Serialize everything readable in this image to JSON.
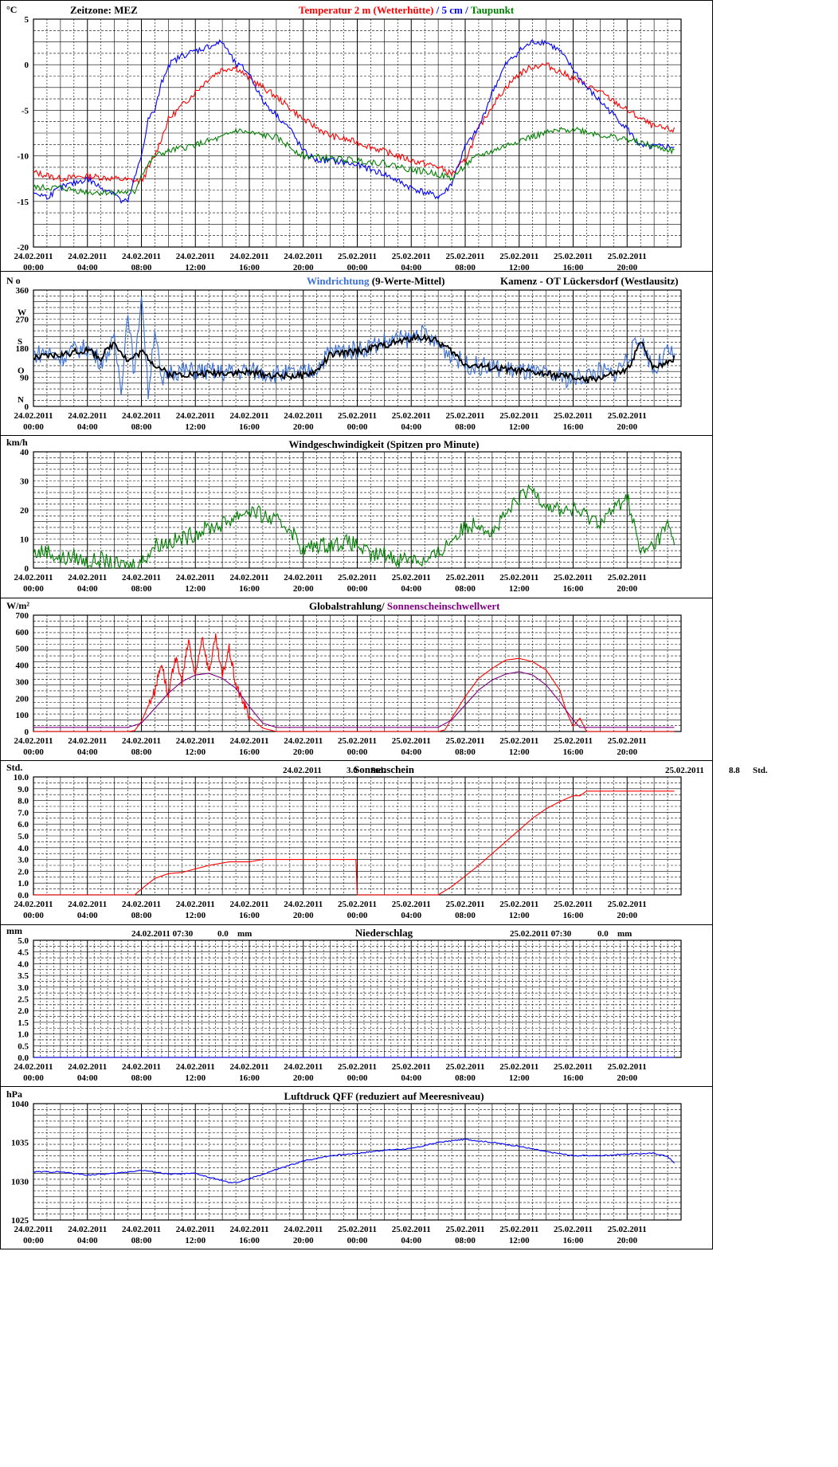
{
  "time_labels": {
    "dates": [
      "24.02.2011",
      "24.02.2011",
      "24.02.2011",
      "24.02.2011",
      "24.02.2011",
      "24.02.2011",
      "25.02.2011",
      "25.02.2011",
      "25.02.2011",
      "25.02.2011",
      "25.02.2011",
      "25.02.2011"
    ],
    "times": [
      "00:00",
      "04:00",
      "08:00",
      "12:00",
      "16:00",
      "20:00",
      "00:00",
      "04:00",
      "08:00",
      "12:00",
      "16:00",
      "20:00"
    ]
  },
  "chart_data": [
    {
      "id": "temperature",
      "type": "line",
      "unit": "°C",
      "ylim": [
        -20,
        5
      ],
      "yticks": [
        5,
        0,
        -5,
        -10,
        -15,
        -20
      ],
      "header_left": "Zeitzone: MEZ",
      "title_parts": [
        {
          "text": "Temperatur 2 m (Wetterhütte)",
          "color": "#ff0000"
        },
        {
          "text": "  /  ",
          "color": "#0000ff"
        },
        {
          "text": "5 cm",
          "color": "#0000ff"
        },
        {
          "text": " / ",
          "color": "#0000ff"
        },
        {
          "text": "Taupunkt",
          "color": "#008000"
        }
      ],
      "series": [
        {
          "name": "Temperatur 2 m (Wetterhütte)",
          "color": "#ff0000",
          "x": [
            0,
            2,
            4,
            6,
            8,
            9,
            10,
            11,
            12,
            13,
            14,
            15,
            16,
            18,
            20,
            22,
            24,
            26,
            28,
            30,
            31,
            32,
            33,
            34,
            35,
            36,
            37,
            38,
            40,
            42,
            44,
            46,
            47.5
          ],
          "values": [
            -11.8,
            -12.5,
            -12.2,
            -12.5,
            -12.8,
            -10,
            -6,
            -4.5,
            -3,
            -1.5,
            -0.5,
            -0.3,
            -1.5,
            -3.5,
            -6,
            -7.8,
            -8.5,
            -9.5,
            -10.5,
            -11.2,
            -12,
            -10.5,
            -7,
            -4.5,
            -2.5,
            -1,
            -0.2,
            0,
            -1.5,
            -3,
            -5,
            -6.8,
            -7.2
          ]
        },
        {
          "name": "5 cm",
          "color": "#0000ff",
          "x": [
            0,
            1,
            2,
            3,
            4,
            5,
            6,
            6.5,
            7,
            8,
            8.5,
            9,
            9.5,
            10,
            10.5,
            11,
            12,
            13,
            14,
            15,
            15.5,
            16,
            17,
            18,
            19,
            20,
            21,
            22,
            24,
            26,
            28,
            30,
            30.5,
            31,
            32,
            33,
            34,
            35,
            36,
            37,
            38,
            39,
            40,
            41,
            42,
            43,
            44,
            44.5,
            45,
            46,
            47,
            47.5
          ],
          "values": [
            -14,
            -14.5,
            -13.5,
            -13,
            -12.5,
            -13.5,
            -14,
            -15,
            -15,
            -10,
            -6,
            -5,
            -2,
            0,
            0.5,
            1,
            1.5,
            2,
            2.5,
            0,
            -0.3,
            -1,
            -4,
            -5.5,
            -7,
            -9.5,
            -10.5,
            -10.5,
            -11,
            -12,
            -13.5,
            -14.5,
            -14,
            -13,
            -9,
            -7,
            -3,
            0,
            1.5,
            2.5,
            2.5,
            1.5,
            -0.5,
            -2.5,
            -4,
            -5.5,
            -7,
            -8,
            -9,
            -9,
            -9,
            -9
          ]
        },
        {
          "name": "Taupunkt",
          "color": "#008000",
          "x": [
            0,
            2,
            4,
            6,
            7.5,
            8,
            9,
            10,
            12,
            14,
            15,
            16,
            18,
            19,
            20,
            22,
            24,
            26,
            28,
            30,
            31,
            32,
            33,
            34,
            36,
            38,
            40,
            42,
            44,
            46,
            47.5
          ],
          "values": [
            -13.5,
            -13.5,
            -14,
            -14,
            -14,
            -12,
            -10,
            -9.5,
            -8.8,
            -8,
            -7.2,
            -7.5,
            -8,
            -9,
            -10,
            -10.3,
            -10.5,
            -10.8,
            -11.5,
            -12,
            -12.5,
            -11,
            -10,
            -9.5,
            -8.3,
            -7.5,
            -7,
            -7.7,
            -8.2,
            -9,
            -9.5
          ]
        }
      ]
    },
    {
      "id": "wind_direction",
      "type": "line",
      "unit": "N o",
      "ylim": [
        0,
        360
      ],
      "yticks": [
        360,
        270,
        180,
        90,
        0
      ],
      "dir_labels": [
        "W",
        "S",
        "O",
        "N"
      ],
      "title_parts": [
        {
          "text": "Windrichtung",
          "color": "#3a6fd8"
        },
        {
          "text": " (9-Werte-Mittel)",
          "color": "#000000"
        }
      ],
      "station": "Kamenz - OT Lückersdorf (Westlausitz)",
      "series": [
        {
          "name": "Windrichtung",
          "color": "#3a6fd8",
          "x": [
            0,
            1,
            2,
            3,
            4,
            5,
            6,
            6.5,
            7,
            7.5,
            8,
            8.5,
            9,
            9.5,
            10,
            12,
            14,
            16,
            18,
            20,
            21,
            22,
            24,
            26,
            28,
            28.5,
            29,
            30,
            31,
            32,
            34,
            36,
            38,
            40,
            42,
            43,
            44,
            45,
            46,
            47,
            47.5
          ],
          "values": [
            160,
            170,
            150,
            175,
            180,
            140,
            200,
            60,
            300,
            90,
            360,
            40,
            250,
            60,
            110,
            110,
            105,
            110,
            100,
            100,
            120,
            170,
            175,
            200,
            210,
            230,
            220,
            190,
            160,
            130,
            120,
            110,
            95,
            85,
            110,
            100,
            150,
            210,
            110,
            170,
            150
          ]
        },
        {
          "name": "",
          "color": "#000000",
          "x": [
            0,
            2,
            4,
            5,
            6,
            7,
            8,
            9,
            10,
            12,
            14,
            16,
            18,
            20,
            21,
            22,
            24,
            26,
            28,
            29,
            30,
            31,
            32,
            34,
            36,
            38,
            40,
            41,
            42,
            43,
            44,
            45,
            46,
            47,
            47.5
          ],
          "values": [
            150,
            160,
            175,
            150,
            200,
            140,
            170,
            130,
            100,
            100,
            105,
            105,
            95,
            95,
            110,
            160,
            170,
            190,
            210,
            215,
            200,
            170,
            130,
            120,
            110,
            100,
            90,
            80,
            90,
            100,
            110,
            200,
            120,
            140,
            150
          ]
        }
      ]
    },
    {
      "id": "wind_speed",
      "type": "line",
      "unit": "km/h",
      "ylim": [
        0,
        40
      ],
      "yticks": [
        40,
        30,
        20,
        10,
        0
      ],
      "title": "Windgeschwindigkeit (Spitzen pro Minute)",
      "series": [
        {
          "name": "Windgeschwindigkeit",
          "color": "#008000",
          "x": [
            0,
            1,
            2,
            3,
            4,
            5,
            6,
            7,
            8,
            9,
            10,
            11,
            12,
            13,
            14,
            15,
            16,
            17,
            18,
            19,
            20,
            21,
            22,
            23,
            24,
            25,
            26,
            27,
            28,
            29,
            30,
            31,
            32,
            33,
            34,
            35,
            36,
            37,
            38,
            39,
            40,
            41,
            42,
            43,
            44,
            45,
            46,
            47,
            47.5
          ],
          "values": [
            5,
            6,
            3,
            4,
            2,
            3,
            1,
            1,
            2,
            8,
            9,
            10,
            12,
            14,
            15,
            18,
            20,
            18,
            16,
            14,
            6,
            8,
            8,
            9,
            8,
            4,
            5,
            3,
            4,
            2,
            5,
            10,
            14,
            16,
            12,
            18,
            24,
            27,
            22,
            20,
            20,
            18,
            16,
            20,
            25,
            5,
            8,
            15,
            8
          ]
        }
      ]
    },
    {
      "id": "global_radiation",
      "type": "line",
      "unit": "W/m²",
      "ylim": [
        0,
        700
      ],
      "yticks": [
        700,
        600,
        500,
        400,
        300,
        200,
        100,
        0
      ],
      "title_parts": [
        {
          "text": "Globalstrahlung/ ",
          "color": "#000000"
        },
        {
          "text": "Sonnenscheinschwellwert",
          "color": "#800080"
        }
      ],
      "series": [
        {
          "name": "Globalstrahlung",
          "color": "#ff0000",
          "x": [
            0,
            7,
            7.5,
            8,
            9,
            9.5,
            10,
            10.5,
            11,
            11.5,
            12,
            12.5,
            13,
            13.5,
            14,
            14.5,
            15,
            16,
            17,
            18,
            30,
            30.5,
            31,
            32,
            33,
            34,
            35,
            36,
            37,
            38,
            39,
            39.5,
            40,
            40.5,
            41,
            41.5,
            42,
            47.5
          ],
          "values": [
            0,
            0,
            5,
            60,
            250,
            420,
            200,
            450,
            300,
            550,
            320,
            580,
            360,
            560,
            330,
            500,
            280,
            90,
            20,
            0,
            0,
            10,
            80,
            210,
            320,
            380,
            430,
            440,
            420,
            370,
            250,
            120,
            30,
            80,
            0,
            0,
            0,
            0
          ]
        },
        {
          "name": "Sonnenscheinschwellwert",
          "color": "#800080",
          "x": [
            0,
            7,
            8,
            9,
            10,
            11,
            12,
            13,
            14,
            15,
            16,
            17,
            18,
            30,
            31,
            32,
            33,
            34,
            35,
            36,
            37,
            38,
            39,
            40,
            40.5,
            41,
            47.5
          ],
          "values": [
            25,
            25,
            50,
            140,
            230,
            300,
            340,
            350,
            320,
            260,
            150,
            50,
            25,
            25,
            70,
            160,
            250,
            310,
            345,
            360,
            340,
            280,
            180,
            70,
            25,
            25,
            25
          ]
        }
      ]
    },
    {
      "id": "sunshine",
      "type": "line",
      "unit": "Std.",
      "ylim": [
        0,
        10
      ],
      "yticks": [
        10.0,
        9.0,
        8.0,
        7.0,
        6.0,
        5.0,
        4.0,
        3.0,
        2.0,
        1.0,
        0.0
      ],
      "title": "Sonnenschein",
      "summaries": [
        {
          "date": "24.02.2011",
          "value": "3.0",
          "unit": "Std."
        },
        {
          "date": "25.02.2011",
          "value": "8.8",
          "unit": "Std."
        }
      ],
      "series": [
        {
          "name": "Sonnenschein",
          "color": "#ff0000",
          "x": [
            0,
            7.5,
            8,
            9,
            10,
            11,
            12,
            13,
            14,
            14.5,
            15,
            16,
            17,
            18,
            20,
            23.9,
            24,
            30,
            31,
            32,
            33,
            34,
            35,
            36,
            37,
            38,
            39,
            40,
            40.5,
            41,
            47.5
          ],
          "values": [
            0,
            0,
            0.5,
            1.4,
            1.8,
            1.9,
            2.2,
            2.5,
            2.7,
            2.8,
            2.8,
            2.8,
            3.0,
            3.0,
            3.0,
            3.0,
            0,
            0,
            0.7,
            1.6,
            2.5,
            3.5,
            4.5,
            5.5,
            6.5,
            7.3,
            7.9,
            8.4,
            8.4,
            8.8,
            8.8
          ]
        }
      ]
    },
    {
      "id": "precipitation",
      "type": "line",
      "unit": "mm",
      "ylim": [
        0,
        5
      ],
      "yticks": [
        5.0,
        4.5,
        4.0,
        3.5,
        3.0,
        2.5,
        2.0,
        1.5,
        1.0,
        0.5,
        0.0
      ],
      "title": "Niederschlag",
      "summaries": [
        {
          "date": "24.02.2011 07:30",
          "value": "0.0",
          "unit": "mm"
        },
        {
          "date": "25.02.2011 07:30",
          "value": "0.0",
          "unit": "mm"
        }
      ],
      "series": [
        {
          "name": "Niederschlag",
          "color": "#0000ff",
          "x": [
            0,
            47.5
          ],
          "values": [
            0,
            0
          ]
        }
      ]
    },
    {
      "id": "pressure",
      "type": "line",
      "unit": "hPa",
      "ylim": [
        1025,
        1040
      ],
      "yticks": [
        1040,
        1035,
        1030,
        1025
      ],
      "title": "Luftdruck QFF (reduziert auf Meeresniveau)",
      "series": [
        {
          "name": "Luftdruck QFF",
          "color": "#0000ff",
          "x": [
            0,
            2,
            4,
            6,
            8,
            9,
            10,
            12,
            13,
            14,
            14.5,
            15,
            16,
            18,
            20,
            22,
            24,
            26,
            28,
            30,
            31,
            32,
            34,
            36,
            38,
            40,
            42,
            44,
            46,
            47,
            47.5
          ],
          "values": [
            1031.2,
            1031.2,
            1030.8,
            1031,
            1031.4,
            1031.2,
            1030.9,
            1031,
            1030.5,
            1030.1,
            1029.8,
            1029.8,
            1030.3,
            1031.5,
            1032.6,
            1033.3,
            1033.6,
            1034,
            1034.2,
            1035,
            1035.2,
            1035.4,
            1035,
            1034.5,
            1033.8,
            1033.3,
            1033.3,
            1033.5,
            1033.6,
            1033.2,
            1032.3
          ]
        }
      ]
    }
  ]
}
